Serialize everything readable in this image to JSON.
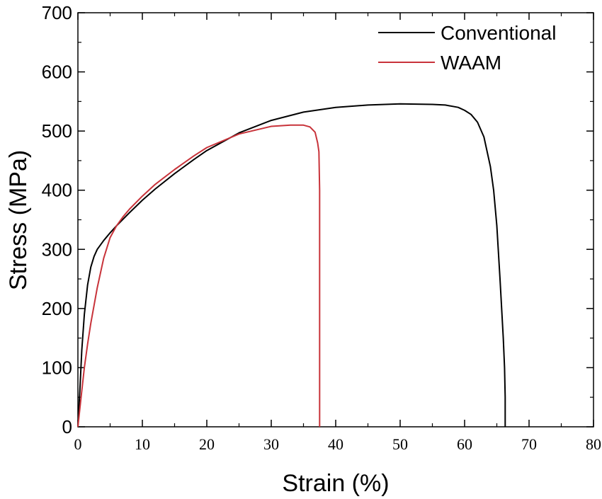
{
  "chart_data": {
    "type": "line",
    "xlabel": "Strain (%)",
    "ylabel": "Stress (MPa)",
    "xlim": [
      0,
      80
    ],
    "ylim": [
      0,
      700
    ],
    "x_ticks": [
      0,
      10,
      20,
      30,
      40,
      50,
      60,
      70,
      80
    ],
    "y_ticks": [
      0,
      100,
      200,
      300,
      400,
      500,
      600,
      700
    ],
    "grid": false,
    "legend_position": "top-right",
    "series": [
      {
        "name": "Conventional",
        "color": "#000000",
        "x": [
          0,
          0.3,
          0.6,
          1.0,
          1.5,
          2.0,
          2.5,
          3.0,
          4.0,
          5.0,
          6.0,
          8.0,
          10.0,
          12.0,
          15.0,
          18.0,
          20.0,
          25.0,
          30.0,
          35.0,
          40.0,
          45.0,
          50.0,
          55.0,
          57.0,
          59.0,
          60.0,
          61.0,
          62.0,
          63.0,
          64.0,
          64.5,
          65.0,
          65.5,
          66.0,
          66.2,
          66.3,
          66.3
        ],
        "y": [
          0,
          60,
          130,
          190,
          240,
          270,
          288,
          300,
          315,
          328,
          340,
          362,
          383,
          402,
          428,
          452,
          467,
          497,
          518,
          532,
          540,
          544,
          546,
          545,
          544,
          540,
          535,
          528,
          515,
          490,
          440,
          400,
          340,
          250,
          150,
          100,
          50,
          0
        ]
      },
      {
        "name": "WAAM",
        "color": "#c8333a",
        "x": [
          0,
          0.5,
          1.0,
          1.5,
          2.0,
          3.0,
          4.0,
          5.0,
          6.0,
          7.0,
          8.0,
          10.0,
          12.0,
          15.0,
          18.0,
          20.0,
          25.0,
          30.0,
          33.0,
          35.0,
          36.0,
          36.8,
          37.2,
          37.4,
          37.5,
          37.5,
          37.5
        ],
        "y": [
          0,
          50,
          100,
          140,
          175,
          235,
          285,
          320,
          340,
          355,
          368,
          390,
          410,
          435,
          458,
          472,
          495,
          508,
          510,
          510,
          507,
          498,
          480,
          465,
          400,
          200,
          0
        ]
      }
    ]
  }
}
